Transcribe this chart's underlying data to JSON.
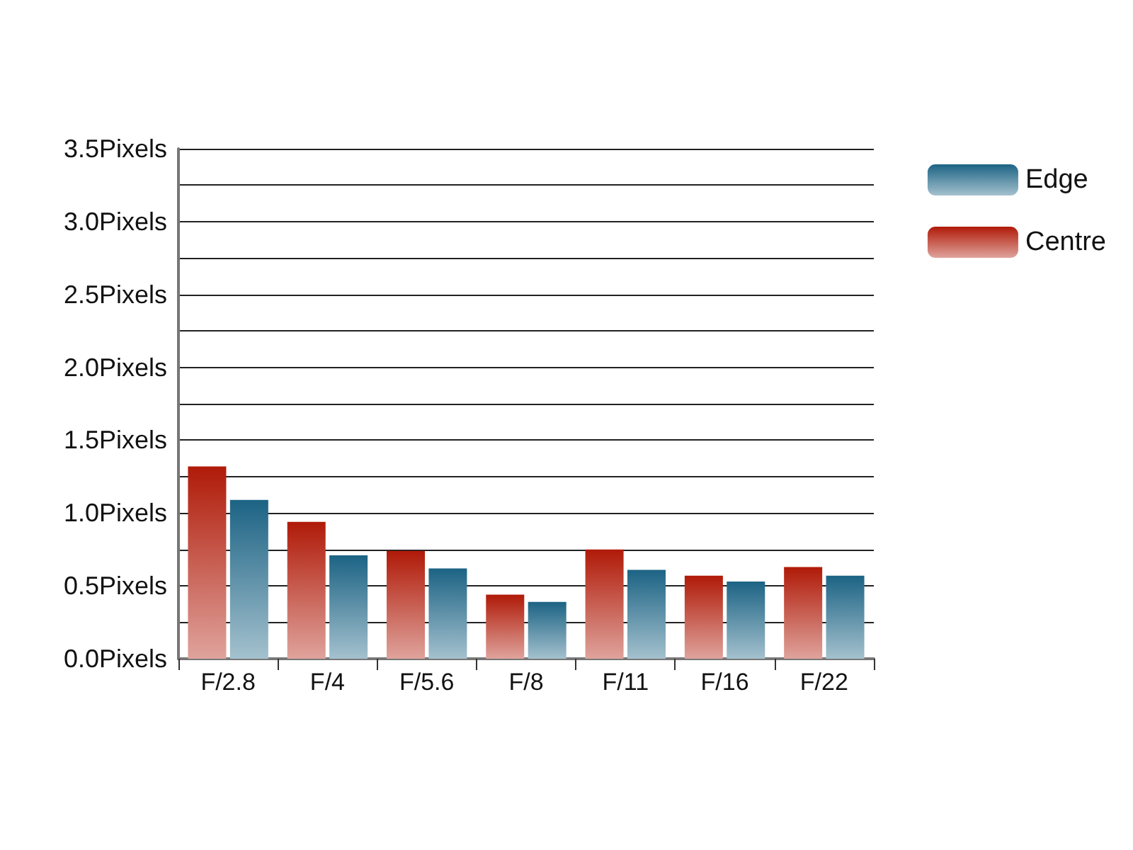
{
  "chart_data": {
    "type": "bar",
    "categories": [
      "F/2.8",
      "F/4",
      "F/5.6",
      "F/8",
      "F/11",
      "F/16",
      "F/22"
    ],
    "series": [
      {
        "name": "Centre",
        "color": "#b01a08",
        "values": [
          1.32,
          0.94,
          0.74,
          0.44,
          0.75,
          0.57,
          0.63
        ]
      },
      {
        "name": "Edge",
        "color": "#1c6384",
        "values": [
          1.09,
          0.71,
          0.62,
          0.39,
          0.61,
          0.53,
          0.57
        ]
      }
    ],
    "ylim": [
      0,
      3.5
    ],
    "yticks": [
      {
        "value": 0,
        "label": "0.0Pixels"
      },
      {
        "value": 0.25,
        "label": null
      },
      {
        "value": 0.5,
        "label": "0.5Pixels"
      },
      {
        "value": 0.75,
        "label": null
      },
      {
        "value": 1,
        "label": "1.0Pixels"
      },
      {
        "value": 1.25,
        "label": null
      },
      {
        "value": 1.5,
        "label": "1.5Pixels"
      },
      {
        "value": 1.75,
        "label": null
      },
      {
        "value": 2,
        "label": "2.0Pixels"
      },
      {
        "value": 2.25,
        "label": null
      },
      {
        "value": 2.5,
        "label": "2.5Pixels"
      },
      {
        "value": 2.75,
        "label": null
      },
      {
        "value": 3,
        "label": "3.0Pixels"
      },
      {
        "value": 3.25,
        "label": null
      },
      {
        "value": 3.5,
        "label": "3.5Pixels"
      }
    ],
    "grid": "y",
    "legend": "top right"
  }
}
